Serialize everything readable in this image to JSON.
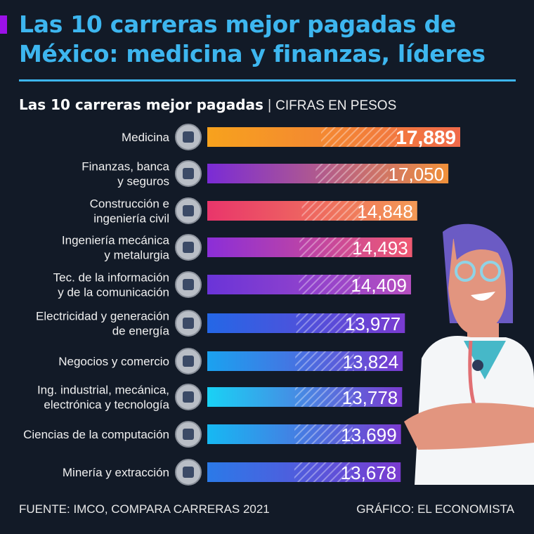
{
  "header": {
    "title": "Las 10 carreras mejor pagadas de México: medicina y finanzas, líderes"
  },
  "subtitle": {
    "bold": "Las 10 carreras mejor pagadas",
    "separator": "|",
    "unit": "CIFRAS EN PESOS"
  },
  "footer": {
    "source": "FUENTE: IMCO, COMPARA CARRERAS 2021",
    "credit": "GRÁFICO: EL ECONOMISTA"
  },
  "chart_data": {
    "type": "bar",
    "orientation": "horizontal",
    "title": "Las 10 carreras mejor pagadas",
    "ylabel": "CIFRAS EN PESOS",
    "categories": [
      [
        "Medicina"
      ],
      [
        "Finanzas, banca",
        "y seguros"
      ],
      [
        "Construcción e",
        "ingeniería civil"
      ],
      [
        "Ingeniería mecánica",
        "y metalurgia"
      ],
      [
        "Tec. de la información",
        "y de la comunicación"
      ],
      [
        "Electricidad y generación",
        "de energía"
      ],
      [
        "Negocios y comercio"
      ],
      [
        "Ing. industrial, mecánica,",
        "electrónica y tecnología"
      ],
      [
        "Ciencias de la computación"
      ],
      [
        "Minería y extracción"
      ]
    ],
    "values": [
      17889,
      17050,
      14848,
      14493,
      14409,
      13977,
      13824,
      13778,
      13699,
      13678
    ],
    "labels": [
      "17,889",
      "17,050",
      "14,848",
      "14,493",
      "14,409",
      "13,977",
      "13,824",
      "13,778",
      "13,699",
      "13,678"
    ],
    "icons": [
      "doctor-icon",
      "finance-icon",
      "construction-icon",
      "metallurgy-icon",
      "it-icon",
      "electricity-icon",
      "business-icon",
      "chip-icon",
      "computer-icon",
      "mining-icon"
    ],
    "colors": [
      [
        "#f7a21d",
        "#f06a4a"
      ],
      [
        "#7a2bd6",
        "#f0913a"
      ],
      [
        "#e9356b",
        "#f39a55"
      ],
      [
        "#8b2ed8",
        "#f05a72"
      ],
      [
        "#6a34d8",
        "#b64fc0"
      ],
      [
        "#2467e6",
        "#7a3bd0"
      ],
      [
        "#1aa2f0",
        "#7a3bd0"
      ],
      [
        "#19d2f5",
        "#7a3bd0"
      ],
      [
        "#16b9f3",
        "#7a3bd0"
      ],
      [
        "#2b7ae8",
        "#7a3bd0"
      ]
    ],
    "xlim": [
      0,
      17889
    ]
  }
}
